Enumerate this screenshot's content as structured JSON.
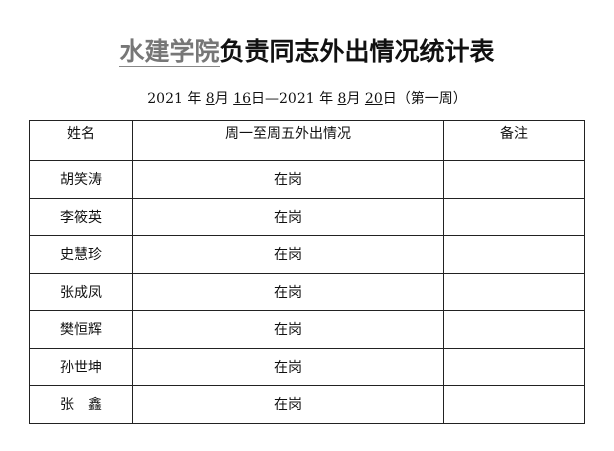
{
  "title": {
    "unit": "水建学院",
    "rest": "负责同志外出情况统计表"
  },
  "date": {
    "y1": "2021",
    "m1": "8",
    "d1": "16",
    "y2": "2021",
    "m2": "8",
    "d2": "20",
    "nian": "年",
    "yue": "月",
    "ri": "日",
    "dash": "—",
    "week": "（第一周）"
  },
  "table": {
    "headers": [
      "姓名",
      "周一至周五外出情况",
      "备注"
    ],
    "rows": [
      {
        "name": "胡笑涛",
        "status": "在岗",
        "note": ""
      },
      {
        "name": "李筱英",
        "status": "在岗",
        "note": ""
      },
      {
        "name": "史慧珍",
        "status": "在岗",
        "note": ""
      },
      {
        "name": "张成凤",
        "status": "在岗",
        "note": ""
      },
      {
        "name": "樊恒辉",
        "status": "在岗",
        "note": ""
      },
      {
        "name": "孙世坤",
        "status": "在岗",
        "note": ""
      },
      {
        "name": "张　鑫",
        "status": "在岗",
        "note": ""
      }
    ]
  }
}
